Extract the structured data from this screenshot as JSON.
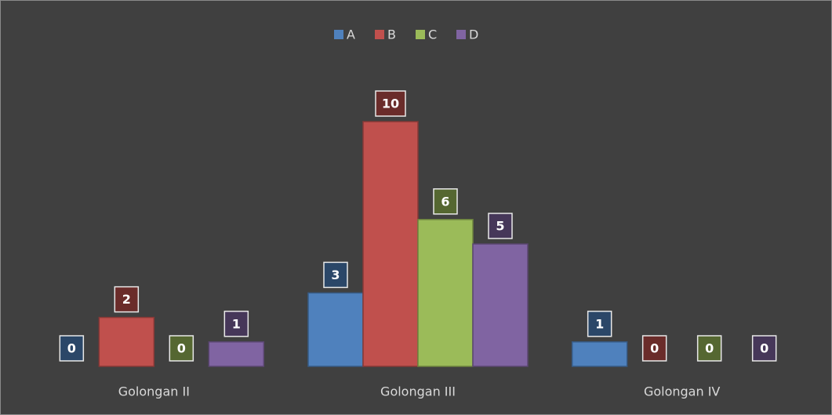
{
  "chart_data": {
    "type": "bar",
    "categories": [
      "Golongan II",
      "Golongan III",
      "Golongan IV"
    ],
    "series": [
      {
        "name": "A",
        "color": "#4f81bd",
        "values": [
          0,
          3,
          1
        ]
      },
      {
        "name": "B",
        "color": "#c0504d",
        "values": [
          2,
          10,
          0
        ]
      },
      {
        "name": "C",
        "color": "#9bbb59",
        "values": [
          0,
          6,
          0
        ]
      },
      {
        "name": "D",
        "color": "#8064a2",
        "values": [
          1,
          5,
          0
        ]
      }
    ],
    "ylim": [
      0,
      10
    ],
    "legend": "top"
  }
}
